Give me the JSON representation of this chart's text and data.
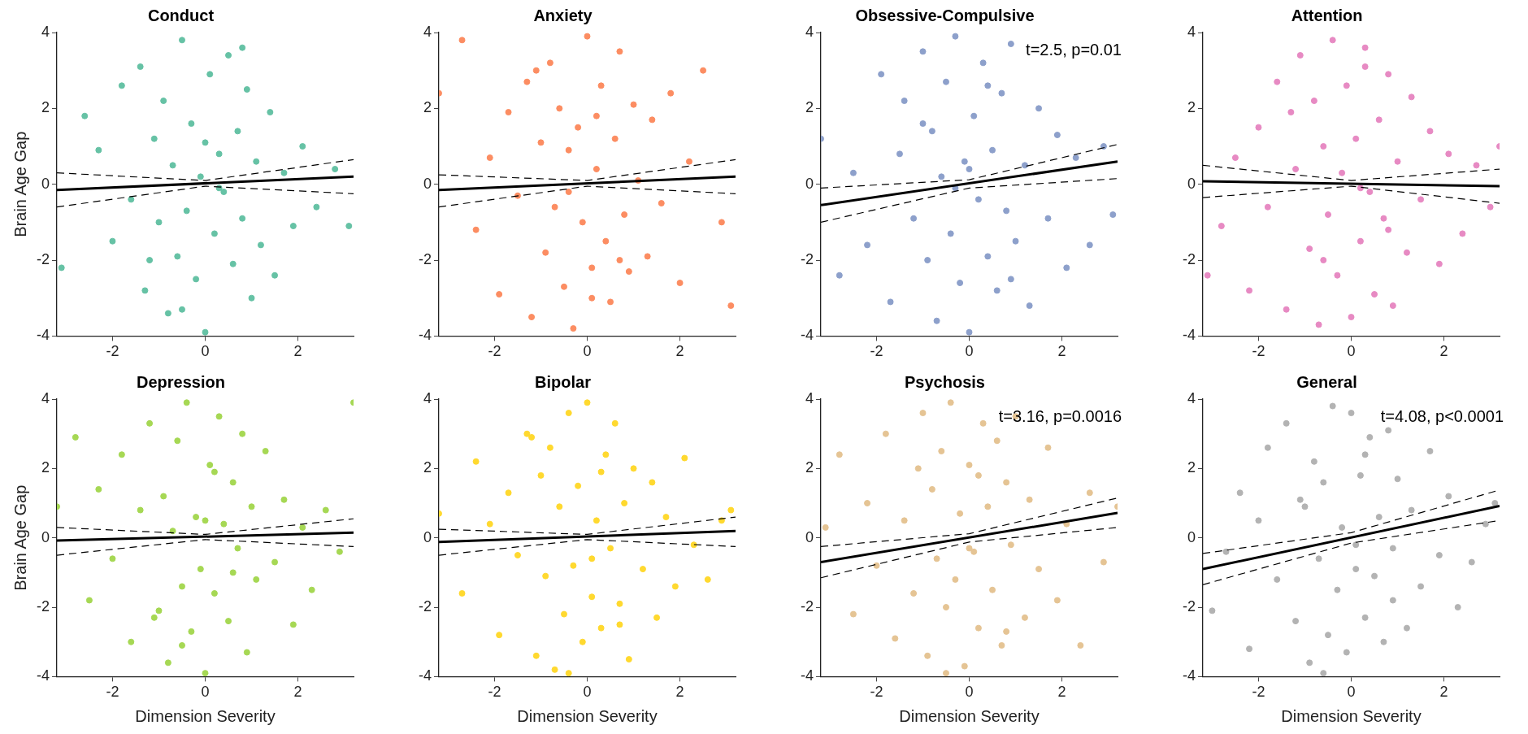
{
  "chart_data": [
    {
      "type": "scatter",
      "title": "Conduct",
      "ylabel": "Brain Age Gap",
      "xlim": [
        -3.2,
        3.2
      ],
      "xticks": [
        -2,
        0,
        2
      ],
      "ylim": [
        -4,
        4
      ],
      "yticks": [
        -4,
        -2,
        0,
        2,
        4
      ],
      "series": [
        {
          "color": "#66c2a5",
          "marker": "circle",
          "x": [
            -3.1,
            -2.6,
            -2.3,
            -2.0,
            -1.8,
            -1.6,
            -1.4,
            -1.3,
            -1.1,
            -1.0,
            -0.9,
            -0.8,
            -0.7,
            -0.6,
            -0.5,
            -0.4,
            -0.3,
            -0.2,
            -0.1,
            0,
            0.1,
            0.2,
            0.3,
            0.4,
            0.5,
            0.6,
            0.7,
            0.8,
            0.9,
            1.0,
            1.1,
            1.2,
            1.4,
            1.5,
            1.7,
            1.9,
            2.1,
            2.4,
            2.8,
            3.1,
            -0.5,
            0.3,
            0.8,
            -1.2,
            0.0
          ],
          "values": [
            -2.2,
            1.8,
            0.9,
            -1.5,
            2.6,
            -0.4,
            3.1,
            -2.8,
            1.2,
            -1.0,
            2.2,
            -3.4,
            0.5,
            -1.9,
            3.8,
            -0.7,
            1.6,
            -2.5,
            0.2,
            -3.9,
            2.9,
            -1.3,
            0.8,
            -0.2,
            3.4,
            -2.1,
            1.4,
            -0.9,
            2.5,
            -3.0,
            0.6,
            -1.6,
            1.9,
            -2.4,
            0.3,
            -1.1,
            1.0,
            -0.6,
            0.4,
            -1.1,
            -3.3,
            -0.1,
            3.6,
            -2.0,
            1.1
          ]
        },
        {
          "type": "line",
          "color": "#000000",
          "x": [
            -3.2,
            3.2
          ],
          "values": [
            -0.15,
            0.2
          ]
        },
        {
          "type": "line",
          "line_style": "dashed",
          "color": "#000000",
          "x": [
            -3.2,
            0,
            3.2
          ],
          "values": [
            0.3,
            0.1,
            0.65
          ]
        },
        {
          "type": "line",
          "line_style": "dashed",
          "color": "#000000",
          "x": [
            -3.2,
            0,
            3.2
          ],
          "values": [
            -0.6,
            -0.05,
            -0.25
          ]
        }
      ]
    },
    {
      "type": "scatter",
      "title": "Anxiety",
      "xlim": [
        -3.2,
        3.2
      ],
      "xticks": [
        -2,
        0,
        2
      ],
      "ylim": [
        -4,
        4
      ],
      "yticks": [
        -4,
        -2,
        0,
        2,
        4
      ],
      "series": [
        {
          "color": "#fc8d62",
          "marker": "circle",
          "x": [
            -3.2,
            -2.7,
            -2.4,
            -2.1,
            -1.9,
            -1.7,
            -1.5,
            -1.3,
            -1.2,
            -1.0,
            -0.9,
            -0.8,
            -0.7,
            -0.6,
            -0.5,
            -0.4,
            -0.3,
            -0.2,
            -0.1,
            0,
            0.1,
            0.2,
            0.3,
            0.4,
            0.5,
            0.6,
            0.7,
            0.8,
            0.9,
            1.0,
            1.1,
            1.3,
            1.4,
            1.6,
            1.8,
            2.0,
            2.2,
            2.5,
            2.9,
            3.1,
            -0.4,
            0.2,
            0.7,
            -1.1,
            0.1
          ],
          "values": [
            2.4,
            3.8,
            -1.2,
            0.7,
            -2.9,
            1.9,
            -0.3,
            2.7,
            -3.5,
            1.1,
            -1.8,
            3.2,
            -0.6,
            2.0,
            -2.7,
            0.9,
            -3.8,
            1.5,
            -1.0,
            3.9,
            -2.2,
            0.4,
            2.6,
            -1.5,
            -3.1,
            1.2,
            3.5,
            -0.8,
            -2.3,
            2.1,
            0.1,
            -1.9,
            1.7,
            -0.5,
            2.4,
            -2.6,
            0.6,
            3.0,
            -1.0,
            -3.2,
            -0.2,
            1.8,
            -2.0,
            3.0,
            -3.0
          ]
        },
        {
          "type": "line",
          "color": "#000000",
          "x": [
            -3.2,
            3.2
          ],
          "values": [
            -0.15,
            0.2
          ]
        },
        {
          "type": "line",
          "line_style": "dashed",
          "color": "#000000",
          "x": [
            -3.2,
            0,
            3.2
          ],
          "values": [
            0.25,
            0.1,
            0.65
          ]
        },
        {
          "type": "line",
          "line_style": "dashed",
          "color": "#000000",
          "x": [
            -3.2,
            0,
            3.2
          ],
          "values": [
            -0.6,
            -0.05,
            -0.25
          ]
        }
      ]
    },
    {
      "type": "scatter",
      "title": "Obsessive-Compulsive",
      "xlim": [
        -3.2,
        3.2
      ],
      "xticks": [
        -2,
        0,
        2
      ],
      "ylim": [
        -4,
        4
      ],
      "yticks": [
        -4,
        -2,
        0,
        2,
        4
      ],
      "annotations": [
        "t=2.5, p=0.01"
      ],
      "series": [
        {
          "color": "#8da0cb",
          "marker": "circle",
          "x": [
            -3.2,
            -2.8,
            -2.5,
            -2.2,
            -1.9,
            -1.7,
            -1.5,
            -1.4,
            -1.2,
            -1.0,
            -0.9,
            -0.8,
            -0.7,
            -0.6,
            -0.5,
            -0.4,
            -0.3,
            -0.2,
            -0.1,
            0,
            0.1,
            0.2,
            0.3,
            0.4,
            0.5,
            0.6,
            0.7,
            0.8,
            0.9,
            1.0,
            1.2,
            1.3,
            1.5,
            1.7,
            1.9,
            2.1,
            2.3,
            2.6,
            2.9,
            3.1,
            -0.3,
            0.4,
            0.9,
            -1.0,
            0.0
          ],
          "values": [
            1.2,
            -2.4,
            0.3,
            -1.6,
            2.9,
            -3.1,
            0.8,
            2.2,
            -0.9,
            3.5,
            -2.0,
            1.4,
            -3.6,
            0.2,
            2.7,
            -1.3,
            3.9,
            -2.6,
            0.6,
            -3.9,
            1.8,
            -0.4,
            3.2,
            -1.9,
            0.9,
            -2.8,
            2.4,
            -0.7,
            3.7,
            -1.5,
            0.5,
            -3.2,
            2.0,
            -0.9,
            1.3,
            -2.2,
            0.7,
            -1.6,
            1.0,
            -0.8,
            -0.1,
            2.6,
            -2.5,
            1.6,
            0.4
          ]
        },
        {
          "type": "line",
          "color": "#000000",
          "x": [
            -3.2,
            3.2
          ],
          "values": [
            -0.55,
            0.6
          ]
        },
        {
          "type": "line",
          "line_style": "dashed",
          "color": "#000000",
          "x": [
            -3.2,
            0,
            3.2
          ],
          "values": [
            -0.1,
            0.12,
            1.05
          ]
        },
        {
          "type": "line",
          "line_style": "dashed",
          "color": "#000000",
          "x": [
            -3.2,
            0,
            3.2
          ],
          "values": [
            -1.0,
            -0.1,
            0.15
          ]
        }
      ]
    },
    {
      "type": "scatter",
      "title": "Attention",
      "xlim": [
        -3.2,
        3.2
      ],
      "xticks": [
        -2,
        0,
        2
      ],
      "ylim": [
        -4,
        4
      ],
      "yticks": [
        -4,
        -2,
        0,
        2,
        4
      ],
      "series": [
        {
          "color": "#e78ac3",
          "marker": "circle",
          "x": [
            -3.1,
            -2.8,
            -2.5,
            -2.2,
            -2.0,
            -1.8,
            -1.6,
            -1.4,
            -1.2,
            -1.1,
            -0.9,
            -0.8,
            -0.7,
            -0.6,
            -0.5,
            -0.4,
            -0.3,
            -0.2,
            -0.1,
            0,
            0.1,
            0.2,
            0.3,
            0.4,
            0.5,
            0.6,
            0.7,
            0.8,
            0.9,
            1.0,
            1.2,
            1.3,
            1.5,
            1.7,
            1.9,
            2.1,
            2.4,
            2.7,
            3.0,
            3.2,
            -0.6,
            0.3,
            0.8,
            -1.3,
            0.2
          ],
          "values": [
            -2.4,
            -1.1,
            0.7,
            -2.8,
            1.5,
            -0.6,
            2.7,
            -3.3,
            0.4,
            3.4,
            -1.7,
            2.2,
            -3.7,
            1.0,
            -0.8,
            3.8,
            -2.4,
            0.3,
            2.6,
            -3.5,
            1.2,
            -1.5,
            3.1,
            -0.2,
            -2.9,
            1.7,
            -0.9,
            2.9,
            -3.2,
            0.6,
            -1.8,
            2.3,
            -0.4,
            1.4,
            -2.1,
            0.8,
            -1.3,
            0.5,
            -0.6,
            1.0,
            -2.0,
            3.6,
            -1.2,
            1.9,
            -0.1
          ]
        },
        {
          "type": "line",
          "color": "#000000",
          "x": [
            -3.2,
            3.2
          ],
          "values": [
            0.08,
            -0.05
          ]
        },
        {
          "type": "line",
          "line_style": "dashed",
          "color": "#000000",
          "x": [
            -3.2,
            0,
            3.2
          ],
          "values": [
            0.5,
            0.1,
            0.4
          ]
        },
        {
          "type": "line",
          "line_style": "dashed",
          "color": "#000000",
          "x": [
            -3.2,
            0,
            3.2
          ],
          "values": [
            -0.35,
            -0.05,
            -0.5
          ]
        }
      ]
    },
    {
      "type": "scatter",
      "title": "Depression",
      "xlabel": "Dimension Severity",
      "ylabel": "Brain Age Gap",
      "xlim": [
        -3.2,
        3.2
      ],
      "xticks": [
        -2,
        0,
        2
      ],
      "ylim": [
        -4,
        4
      ],
      "yticks": [
        -4,
        -2,
        0,
        2,
        4
      ],
      "series": [
        {
          "color": "#a6d854",
          "marker": "circle",
          "x": [
            -3.2,
            -2.8,
            -2.5,
            -2.3,
            -2.0,
            -1.8,
            -1.6,
            -1.4,
            -1.2,
            -1.0,
            -0.9,
            -0.8,
            -0.7,
            -0.6,
            -0.5,
            -0.4,
            -0.3,
            -0.2,
            -0.1,
            0,
            0.1,
            0.2,
            0.3,
            0.4,
            0.5,
            0.6,
            0.7,
            0.8,
            0.9,
            1.0,
            1.1,
            1.3,
            1.5,
            1.7,
            1.9,
            2.1,
            2.3,
            2.6,
            2.9,
            3.2,
            -0.5,
            0.2,
            0.6,
            -1.1,
            0.0
          ],
          "values": [
            0.9,
            2.9,
            -1.8,
            1.4,
            -0.6,
            2.4,
            -3.0,
            0.8,
            3.3,
            -2.1,
            1.2,
            -3.6,
            0.2,
            2.8,
            -1.4,
            3.9,
            -2.7,
            0.6,
            -0.9,
            -3.9,
            2.1,
            -1.6,
            3.5,
            0.4,
            -2.4,
            1.6,
            -0.3,
            3.0,
            -3.3,
            0.9,
            -1.2,
            2.5,
            -0.7,
            1.1,
            -2.5,
            0.3,
            -1.5,
            0.8,
            -0.4,
            3.9,
            -3.1,
            1.9,
            -1.0,
            -2.3,
            0.5
          ]
        },
        {
          "type": "line",
          "color": "#000000",
          "x": [
            -3.2,
            3.2
          ],
          "values": [
            -0.08,
            0.15
          ]
        },
        {
          "type": "line",
          "line_style": "dashed",
          "color": "#000000",
          "x": [
            -3.2,
            0,
            3.2
          ],
          "values": [
            0.3,
            0.1,
            0.55
          ]
        },
        {
          "type": "line",
          "line_style": "dashed",
          "color": "#000000",
          "x": [
            -3.2,
            0,
            3.2
          ],
          "values": [
            -0.5,
            -0.05,
            -0.25
          ]
        }
      ]
    },
    {
      "type": "scatter",
      "title": "Bipolar",
      "xlabel": "Dimension Severity",
      "xlim": [
        -3.2,
        3.2
      ],
      "xticks": [
        -2,
        0,
        2
      ],
      "ylim": [
        -4,
        4
      ],
      "yticks": [
        -4,
        -2,
        0,
        2,
        4
      ],
      "series": [
        {
          "color": "#ffd92f",
          "marker": "circle",
          "x": [
            -3.2,
            -2.7,
            -2.4,
            -2.1,
            -1.9,
            -1.7,
            -1.5,
            -1.3,
            -1.1,
            -1.0,
            -0.9,
            -0.8,
            -0.7,
            -0.6,
            -0.5,
            -0.4,
            -0.3,
            -0.2,
            -0.1,
            0,
            0.1,
            0.2,
            0.3,
            0.4,
            0.5,
            0.6,
            0.7,
            0.8,
            0.9,
            1.0,
            1.2,
            1.4,
            1.5,
            1.7,
            1.9,
            2.1,
            2.3,
            2.6,
            2.9,
            3.1,
            -0.4,
            0.3,
            0.7,
            -1.2,
            0.1
          ],
          "values": [
            0.7,
            -1.6,
            2.2,
            0.4,
            -2.8,
            1.3,
            -0.5,
            3.0,
            -3.4,
            1.8,
            -1.1,
            2.6,
            -3.8,
            0.9,
            -2.2,
            3.6,
            -0.8,
            1.5,
            -3.0,
            3.9,
            -1.7,
            0.5,
            -2.6,
            2.4,
            -0.3,
            3.3,
            -1.9,
            1.0,
            -3.5,
            2.0,
            -0.9,
            1.6,
            -2.3,
            0.6,
            -1.4,
            2.3,
            -0.2,
            -1.2,
            0.5,
            0.8,
            -3.9,
            1.9,
            -2.5,
            2.9,
            -0.6
          ]
        },
        {
          "type": "line",
          "color": "#000000",
          "x": [
            -3.2,
            3.2
          ],
          "values": [
            -0.12,
            0.2
          ]
        },
        {
          "type": "line",
          "line_style": "dashed",
          "color": "#000000",
          "x": [
            -3.2,
            0,
            3.2
          ],
          "values": [
            0.25,
            0.1,
            0.6
          ]
        },
        {
          "type": "line",
          "line_style": "dashed",
          "color": "#000000",
          "x": [
            -3.2,
            0,
            3.2
          ],
          "values": [
            -0.5,
            -0.05,
            -0.25
          ]
        }
      ]
    },
    {
      "type": "scatter",
      "title": "Psychosis",
      "xlabel": "Dimension Severity",
      "xlim": [
        -3.2,
        3.2
      ],
      "xticks": [
        -2,
        0,
        2
      ],
      "ylim": [
        -4,
        4
      ],
      "yticks": [
        -4,
        -2,
        0,
        2,
        4
      ],
      "annotations": [
        "t=3.16, p=0.0016"
      ],
      "series": [
        {
          "color": "#e5c494",
          "marker": "circle",
          "x": [
            -3.1,
            -2.8,
            -2.5,
            -2.2,
            -2.0,
            -1.8,
            -1.6,
            -1.4,
            -1.2,
            -1.0,
            -0.9,
            -0.8,
            -0.7,
            -0.6,
            -0.5,
            -0.4,
            -0.3,
            -0.2,
            -0.1,
            0,
            0.1,
            0.2,
            0.3,
            0.4,
            0.5,
            0.6,
            0.7,
            0.8,
            0.9,
            1.0,
            1.2,
            1.3,
            1.5,
            1.7,
            1.9,
            2.1,
            2.4,
            2.6,
            2.9,
            3.2,
            -0.5,
            0.2,
            0.8,
            -1.1,
            0.0
          ],
          "values": [
            0.3,
            2.4,
            -2.2,
            1.0,
            -0.8,
            3.0,
            -2.9,
            0.5,
            -1.6,
            3.6,
            -3.4,
            1.4,
            -0.6,
            2.5,
            -2.0,
            3.9,
            -1.2,
            0.7,
            -3.7,
            2.1,
            -0.4,
            -2.6,
            3.3,
            0.9,
            -1.5,
            2.8,
            -3.1,
            1.6,
            -0.2,
            3.5,
            -2.3,
            1.1,
            -0.9,
            2.6,
            -1.8,
            0.4,
            -3.1,
            1.3,
            -0.7,
            0.9,
            -3.9,
            1.8,
            -2.7,
            2.0,
            -0.3
          ]
        },
        {
          "type": "line",
          "color": "#000000",
          "x": [
            -3.2,
            3.2
          ],
          "values": [
            -0.7,
            0.72
          ]
        },
        {
          "type": "line",
          "line_style": "dashed",
          "color": "#000000",
          "x": [
            -3.2,
            0,
            3.2
          ],
          "values": [
            -0.25,
            0.12,
            1.15
          ]
        },
        {
          "type": "line",
          "line_style": "dashed",
          "color": "#000000",
          "x": [
            -3.2,
            0,
            3.2
          ],
          "values": [
            -1.15,
            -0.12,
            0.3
          ]
        }
      ]
    },
    {
      "type": "scatter",
      "title": "General",
      "xlabel": "Dimension Severity",
      "xlim": [
        -3.2,
        3.2
      ],
      "xticks": [
        -2,
        0,
        2
      ],
      "ylim": [
        -4,
        4
      ],
      "yticks": [
        -4,
        -2,
        0,
        2,
        4
      ],
      "annotations": [
        "t=4.08, p<0.0001"
      ],
      "series": [
        {
          "color": "#b3b3b3",
          "marker": "circle",
          "x": [
            -3.0,
            -2.7,
            -2.4,
            -2.2,
            -2.0,
            -1.8,
            -1.6,
            -1.4,
            -1.2,
            -1.0,
            -0.9,
            -0.8,
            -0.7,
            -0.6,
            -0.5,
            -0.4,
            -0.3,
            -0.2,
            -0.1,
            0,
            0.1,
            0.2,
            0.3,
            0.4,
            0.5,
            0.6,
            0.7,
            0.8,
            0.9,
            1.0,
            1.2,
            1.3,
            1.5,
            1.7,
            1.9,
            2.1,
            2.3,
            2.6,
            2.9,
            3.1,
            -0.6,
            0.3,
            0.9,
            -1.1,
            0.1
          ],
          "values": [
            -2.1,
            -0.4,
            1.3,
            -3.2,
            0.5,
            2.6,
            -1.2,
            3.3,
            -2.4,
            0.9,
            -3.6,
            2.2,
            -0.6,
            1.6,
            -2.8,
            3.8,
            -1.5,
            0.3,
            -3.3,
            3.6,
            -0.9,
            1.8,
            -2.3,
            2.9,
            -1.1,
            0.6,
            -3.0,
            3.1,
            -0.3,
            1.7,
            -2.6,
            0.8,
            -1.4,
            2.5,
            -0.5,
            1.2,
            -2.0,
            -0.7,
            0.4,
            1.0,
            -3.9,
            2.4,
            -1.8,
            1.1,
            -0.2
          ]
        },
        {
          "type": "line",
          "color": "#000000",
          "x": [
            -3.2,
            3.2
          ],
          "values": [
            -0.9,
            0.92
          ]
        },
        {
          "type": "line",
          "line_style": "dashed",
          "color": "#000000",
          "x": [
            -3.2,
            0,
            3.2
          ],
          "values": [
            -0.45,
            0.15,
            1.38
          ]
        },
        {
          "type": "line",
          "line_style": "dashed",
          "color": "#000000",
          "x": [
            -3.2,
            0,
            3.2
          ],
          "values": [
            -1.35,
            -0.15,
            0.5
          ]
        }
      ]
    }
  ]
}
